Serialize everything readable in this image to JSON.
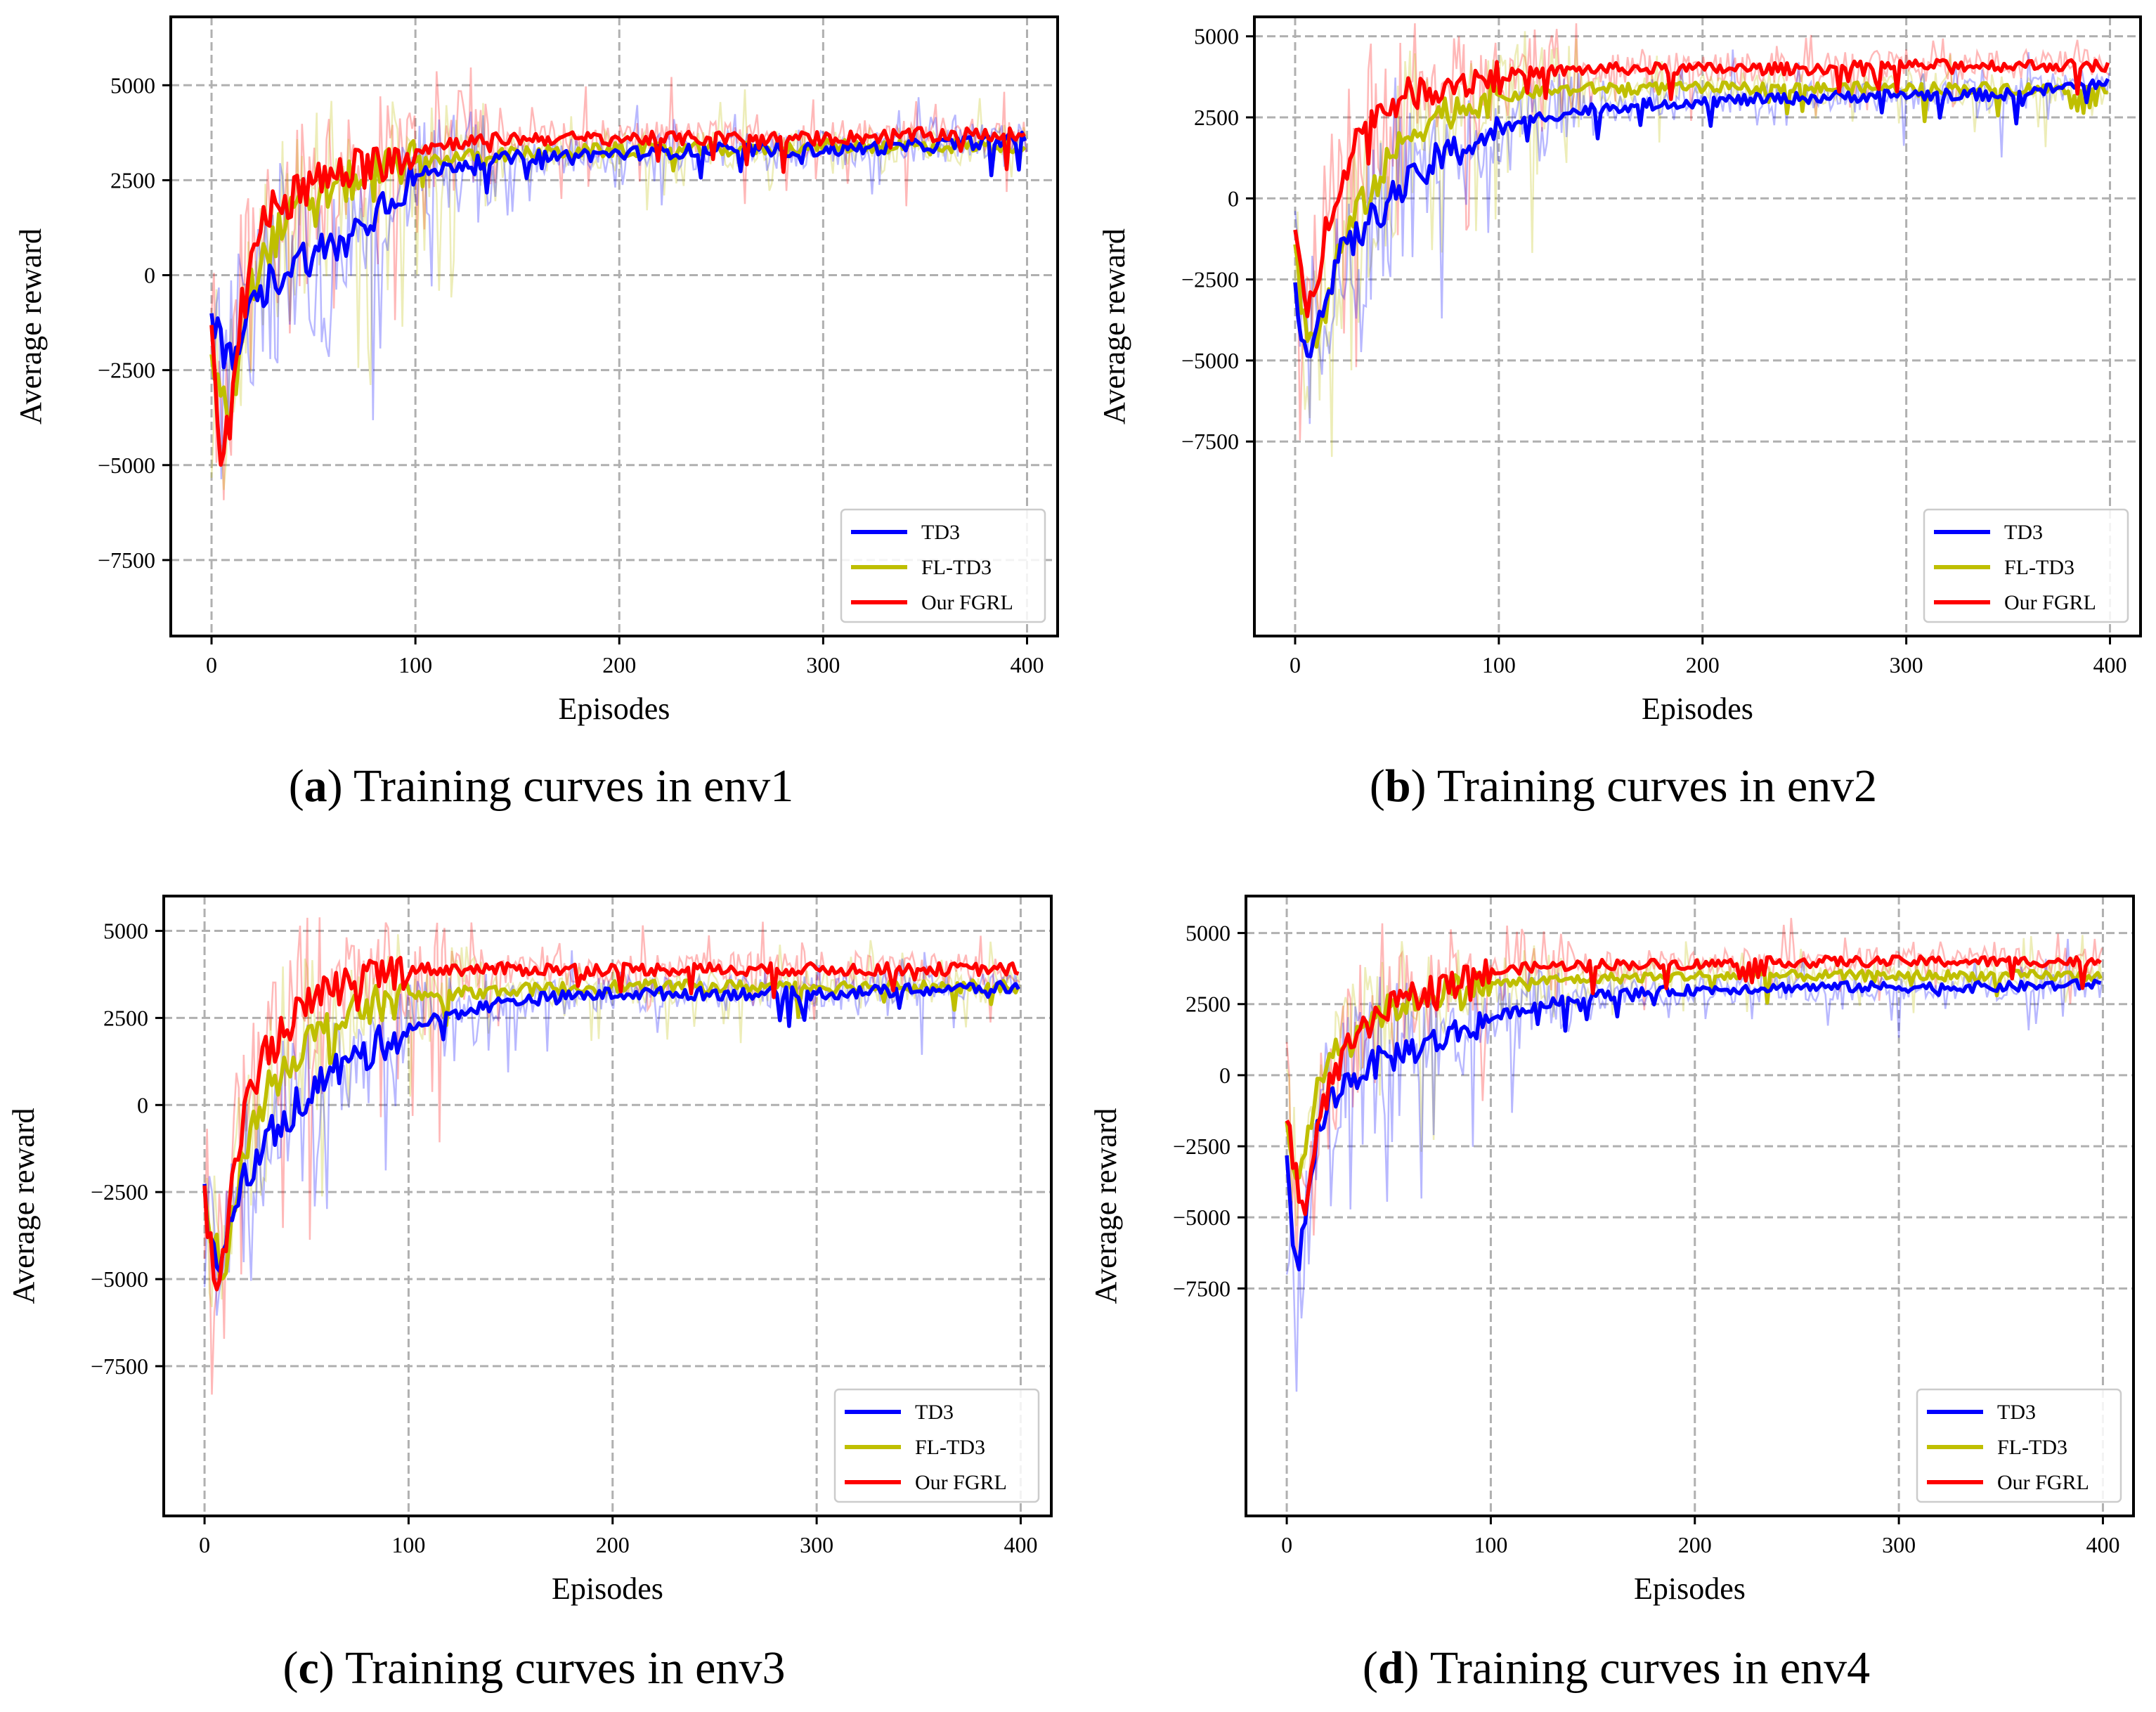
{
  "chart_data": [
    {
      "type": "line",
      "caption_letter": "a",
      "caption_text": "Training curves in env1",
      "xlabel": "Episodes",
      "ylabel": "Average reward",
      "xlim": [
        -20,
        415
      ],
      "ylim": [
        -9500,
        6800
      ],
      "xticks": [
        0,
        100,
        200,
        300,
        400
      ],
      "yticks": [
        5000,
        2500,
        0,
        -2500,
        -5000,
        -7500
      ],
      "grid": true,
      "legend_position": "lower-right",
      "series": [
        {
          "name": "TD3",
          "color": "#0000ff",
          "x": [
            0,
            5,
            10,
            15,
            20,
            30,
            40,
            50,
            60,
            70,
            80,
            90,
            100,
            120,
            150,
            200,
            250,
            300,
            350,
            400
          ],
          "y": [
            -1000,
            -2000,
            -2400,
            -1500,
            -900,
            -100,
            300,
            600,
            700,
            1100,
            1700,
            2200,
            2600,
            2900,
            3100,
            3200,
            3300,
            3300,
            3400,
            3600
          ]
        },
        {
          "name": "FL-TD3",
          "color": "#bfbf00",
          "x": [
            0,
            5,
            10,
            15,
            20,
            30,
            40,
            50,
            60,
            70,
            80,
            90,
            100,
            120,
            150,
            200,
            250,
            300,
            350,
            400
          ],
          "y": [
            -2200,
            -3400,
            -3600,
            -1500,
            -200,
            900,
            1600,
            2100,
            2300,
            2500,
            2700,
            2900,
            3000,
            3100,
            3200,
            3300,
            3300,
            3400,
            3400,
            3400
          ]
        },
        {
          "name": "Our FGRL",
          "color": "#ff0000",
          "x": [
            0,
            5,
            10,
            15,
            20,
            30,
            40,
            50,
            60,
            70,
            80,
            90,
            100,
            120,
            150,
            200,
            250,
            300,
            350,
            400
          ],
          "y": [
            -1800,
            -4800,
            -3500,
            -500,
            700,
            1800,
            2200,
            2400,
            2600,
            2800,
            2900,
            3200,
            3300,
            3500,
            3600,
            3600,
            3600,
            3600,
            3700,
            3700
          ]
        }
      ]
    },
    {
      "type": "line",
      "caption_letter": "b",
      "caption_text": "Training curves in env2",
      "xlabel": "Episodes",
      "ylabel": "Average reward",
      "xlim": [
        -20,
        415
      ],
      "ylim": [
        -13500,
        5600
      ],
      "xticks": [
        0,
        100,
        200,
        300,
        400
      ],
      "yticks": [
        5000,
        2500,
        0,
        -2500,
        -5000,
        -7500
      ],
      "grid": true,
      "legend_position": "lower-right",
      "series": [
        {
          "name": "TD3",
          "color": "#0000ff",
          "x": [
            0,
            5,
            10,
            15,
            20,
            30,
            40,
            50,
            60,
            70,
            80,
            90,
            100,
            120,
            150,
            200,
            250,
            300,
            350,
            400
          ],
          "y": [
            -2800,
            -4500,
            -4200,
            -3000,
            -2000,
            -1200,
            -500,
            200,
            600,
            1200,
            1500,
            1800,
            2100,
            2500,
            2800,
            3000,
            3100,
            3200,
            3200,
            3600
          ]
        },
        {
          "name": "FL-TD3",
          "color": "#bfbf00",
          "x": [
            0,
            5,
            10,
            15,
            20,
            30,
            40,
            50,
            60,
            70,
            80,
            90,
            100,
            120,
            150,
            200,
            250,
            300,
            350,
            400
          ],
          "y": [
            -1800,
            -3800,
            -4500,
            -3500,
            -2000,
            -500,
            500,
            1500,
            2200,
            2600,
            2800,
            3000,
            3100,
            3300,
            3400,
            3400,
            3400,
            3400,
            3400,
            3300
          ]
        },
        {
          "name": "Our FGRL",
          "color": "#ff0000",
          "x": [
            0,
            5,
            10,
            15,
            20,
            30,
            40,
            50,
            60,
            70,
            80,
            90,
            100,
            120,
            150,
            200,
            250,
            300,
            350,
            400
          ],
          "y": [
            -900,
            -3800,
            -2800,
            -1000,
            300,
            1800,
            2600,
            3000,
            3300,
            3500,
            3600,
            3700,
            3800,
            3900,
            4000,
            4000,
            4000,
            4100,
            4100,
            4100
          ]
        }
      ]
    },
    {
      "type": "line",
      "caption_letter": "c",
      "caption_text": "Training curves in env3",
      "xlabel": "Episodes",
      "ylabel": "Average reward",
      "xlim": [
        -20,
        415
      ],
      "ylim": [
        -11800,
        6000
      ],
      "xticks": [
        0,
        100,
        200,
        300,
        400
      ],
      "yticks": [
        5000,
        2500,
        0,
        -2500,
        -5000,
        -7500
      ],
      "grid": true,
      "legend_position": "lower-right",
      "series": [
        {
          "name": "TD3",
          "color": "#0000ff",
          "x": [
            0,
            5,
            10,
            15,
            20,
            30,
            40,
            50,
            60,
            70,
            80,
            90,
            100,
            120,
            150,
            200,
            250,
            300,
            350,
            400
          ],
          "y": [
            -2800,
            -4500,
            -4300,
            -3000,
            -2000,
            -1000,
            -300,
            300,
            800,
            1200,
            1500,
            1900,
            2200,
            2600,
            3000,
            3200,
            3200,
            3200,
            3300,
            3400
          ]
        },
        {
          "name": "FL-TD3",
          "color": "#bfbf00",
          "x": [
            0,
            5,
            10,
            15,
            20,
            30,
            40,
            50,
            60,
            70,
            80,
            90,
            100,
            120,
            150,
            200,
            250,
            300,
            350,
            400
          ],
          "y": [
            -2500,
            -4000,
            -5200,
            -2500,
            -1200,
            300,
            1200,
            1800,
            2200,
            2500,
            2800,
            3000,
            3100,
            3200,
            3300,
            3400,
            3400,
            3400,
            3400,
            3400
          ]
        },
        {
          "name": "Our FGRL",
          "color": "#ff0000",
          "x": [
            0,
            5,
            10,
            15,
            20,
            30,
            40,
            50,
            60,
            70,
            80,
            90,
            100,
            120,
            150,
            200,
            250,
            300,
            350,
            400
          ],
          "y": [
            -2800,
            -5000,
            -4500,
            -1500,
            0,
            1500,
            2300,
            2800,
            3200,
            3500,
            3700,
            3800,
            3900,
            3900,
            3900,
            3900,
            3900,
            3900,
            3900,
            3900
          ]
        }
      ]
    },
    {
      "type": "line",
      "caption_letter": "d",
      "caption_text": "Training curves in env4",
      "xlabel": "Episodes",
      "ylabel": "Average reward",
      "xlim": [
        -20,
        415
      ],
      "ylim": [
        -15500,
        6300
      ],
      "xticks": [
        0,
        100,
        200,
        300,
        400
      ],
      "yticks": [
        5000,
        2500,
        0,
        -2500,
        -5000,
        -7500
      ],
      "grid": true,
      "legend_position": "lower-right",
      "series": [
        {
          "name": "TD3",
          "color": "#0000ff",
          "x": [
            0,
            5,
            10,
            15,
            20,
            30,
            40,
            50,
            60,
            70,
            80,
            90,
            100,
            120,
            150,
            200,
            250,
            300,
            350,
            400
          ],
          "y": [
            -3000,
            -7200,
            -4500,
            -2000,
            -1000,
            -200,
            300,
            600,
            900,
            1100,
            1400,
            1700,
            2000,
            2400,
            2800,
            3000,
            3100,
            3100,
            3100,
            3200
          ]
        },
        {
          "name": "FL-TD3",
          "color": "#bfbf00",
          "x": [
            0,
            5,
            10,
            15,
            20,
            30,
            40,
            50,
            60,
            70,
            80,
            90,
            100,
            120,
            150,
            200,
            250,
            300,
            350,
            400
          ],
          "y": [
            -2000,
            -3500,
            -2500,
            -500,
            600,
            1500,
            2000,
            2300,
            2600,
            2800,
            3000,
            3100,
            3200,
            3300,
            3400,
            3500,
            3500,
            3500,
            3500,
            3500
          ]
        },
        {
          "name": "Our FGRL",
          "color": "#ff0000",
          "x": [
            0,
            5,
            10,
            15,
            20,
            30,
            40,
            50,
            60,
            70,
            80,
            90,
            100,
            120,
            150,
            200,
            250,
            300,
            350,
            400
          ],
          "y": [
            -1200,
            -3800,
            -4500,
            -2200,
            -500,
            900,
            1700,
            2300,
            2700,
            3000,
            3300,
            3500,
            3600,
            3800,
            3900,
            3900,
            4000,
            4000,
            4000,
            4000
          ]
        }
      ]
    }
  ]
}
